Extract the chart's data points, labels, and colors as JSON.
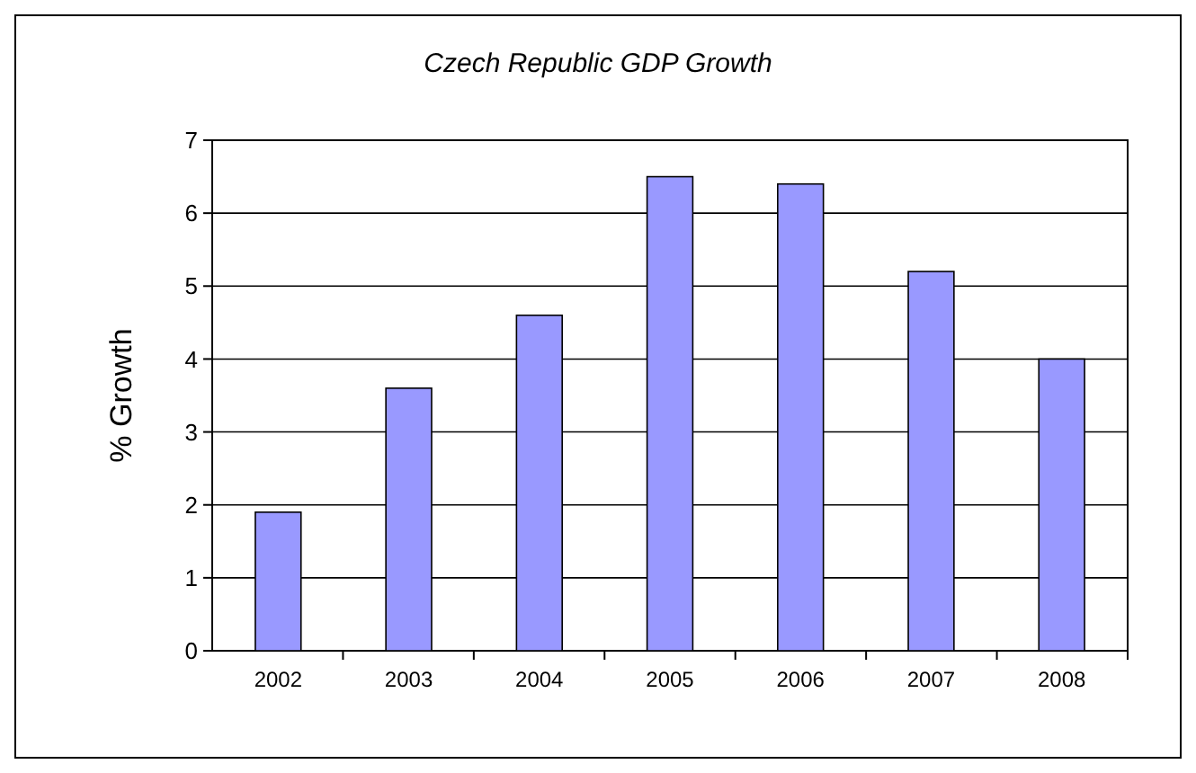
{
  "chart_data": {
    "type": "bar",
    "title": "Czech Republic GDP Growth",
    "ylabel": "% Growth",
    "categories": [
      "2002",
      "2003",
      "2004",
      "2005",
      "2006",
      "2007",
      "2008"
    ],
    "values": [
      1.9,
      3.6,
      4.6,
      6.5,
      6.4,
      5.2,
      4.0
    ],
    "color": "#9999ff",
    "ylim": [
      0,
      7
    ],
    "yticks": [
      0,
      1,
      2,
      3,
      4,
      5,
      6,
      7
    ],
    "grid": "y"
  }
}
